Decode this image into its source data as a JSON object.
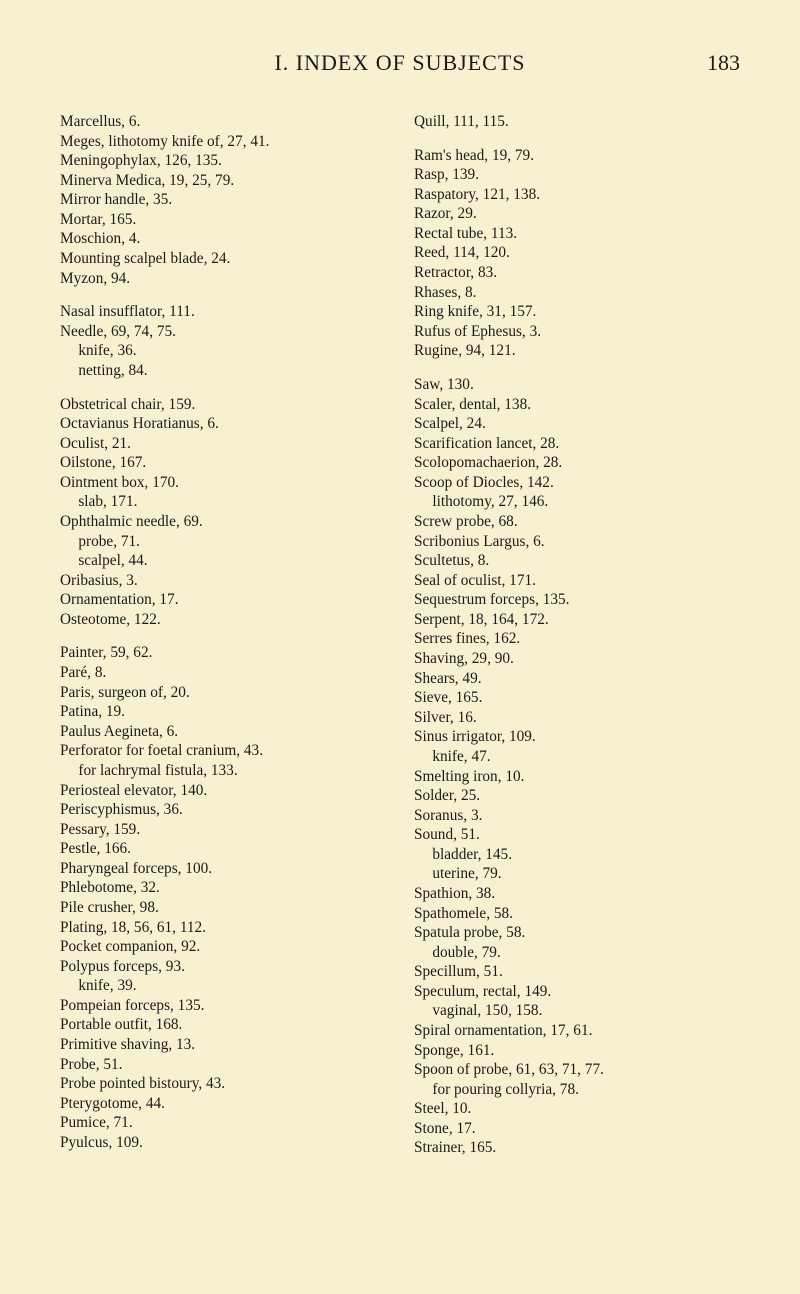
{
  "header": {
    "title": "I.  INDEX OF SUBJECTS",
    "page_number": "183"
  },
  "columns": [
    {
      "groups": [
        [
          "Marcellus, 6.",
          "Meges, lithotomy knife of, 27, 41.",
          "Meningophylax, 126, 135.",
          "Minerva Medica, 19, 25, 79.",
          "Mirror handle, 35.",
          "Mortar, 165.",
          "Moschion, 4.",
          "Mounting scalpel blade, 24.",
          "Myzon, 94."
        ],
        [
          "Nasal insufflator, 111.",
          "Needle, 69, 74, 75.",
          "  knife, 36.",
          "  netting, 84."
        ],
        [
          "Obstetrical chair, 159.",
          "Octavianus Horatianus, 6.",
          "Oculist, 21.",
          "Oilstone, 167.",
          "Ointment box, 170.",
          "  slab, 171.",
          "Ophthalmic needle, 69.",
          "  probe, 71.",
          "  scalpel, 44.",
          "Oribasius, 3.",
          "Ornamentation, 17.",
          "Osteotome, 122."
        ],
        [
          "Painter, 59, 62.",
          "Paré, 8.",
          "Paris, surgeon of, 20.",
          "Patina, 19.",
          "Paulus Aegineta, 6.",
          "Perforator for foetal cranium, 43.",
          "  for lachrymal fistula, 133.",
          "Periosteal elevator, 140.",
          "Periscyphismus, 36.",
          "Pessary, 159.",
          "Pestle, 166.",
          "Pharyngeal forceps, 100.",
          "Phlebotome, 32.",
          "Pile crusher, 98.",
          "Plating, 18, 56, 61, 112.",
          "Pocket companion, 92.",
          "Polypus forceps, 93.",
          "  knife, 39.",
          "Pompeian forceps, 135.",
          "Portable outfit, 168.",
          "Primitive shaving, 13.",
          "Probe, 51.",
          "Probe pointed bistoury, 43.",
          "Pterygotome, 44.",
          "Pumice, 71.",
          "Pyulcus, 109."
        ]
      ]
    },
    {
      "groups": [
        [
          "Quill, 111, 115."
        ],
        [
          "Ram's head, 19, 79.",
          "Rasp, 139.",
          "Raspatory, 121, 138.",
          "Razor, 29.",
          "Rectal tube, 113.",
          "Reed, 114, 120.",
          "Retractor, 83.",
          "Rhases, 8.",
          "Ring knife, 31, 157.",
          "Rufus of Ephesus, 3.",
          "Rugine, 94, 121."
        ],
        [
          "Saw, 130.",
          "Scaler, dental, 138.",
          "Scalpel, 24.",
          "Scarification lancet, 28.",
          "Scolopomachaerion, 28.",
          "Scoop of Diocles, 142.",
          "  lithotomy, 27, 146.",
          "Screw probe, 68.",
          "Scribonius Largus, 6.",
          "Scultetus, 8.",
          "Seal of oculist, 171.",
          "Sequestrum forceps, 135.",
          "Serpent, 18, 164, 172.",
          "Serres fines, 162.",
          "Shaving, 29, 90.",
          "Shears, 49.",
          "Sieve, 165.",
          "Silver, 16.",
          "Sinus irrigator, 109.",
          "  knife, 47.",
          "Smelting iron, 10.",
          "Solder, 25.",
          "Soranus, 3.",
          "Sound, 51.",
          "  bladder, 145.",
          "  uterine, 79.",
          "Spathion, 38.",
          "Spathomele, 58.",
          "Spatula probe, 58.",
          "  double, 79.",
          "Specillum, 51.",
          "Speculum, rectal, 149.",
          "  vaginal, 150, 158.",
          "Spiral ornamentation, 17, 61.",
          "Sponge, 161.",
          "Spoon of probe, 61, 63, 71, 77.",
          "  for pouring collyria, 78.",
          "Steel, 10.",
          "Stone, 17.",
          "Strainer, 165."
        ]
      ]
    }
  ]
}
